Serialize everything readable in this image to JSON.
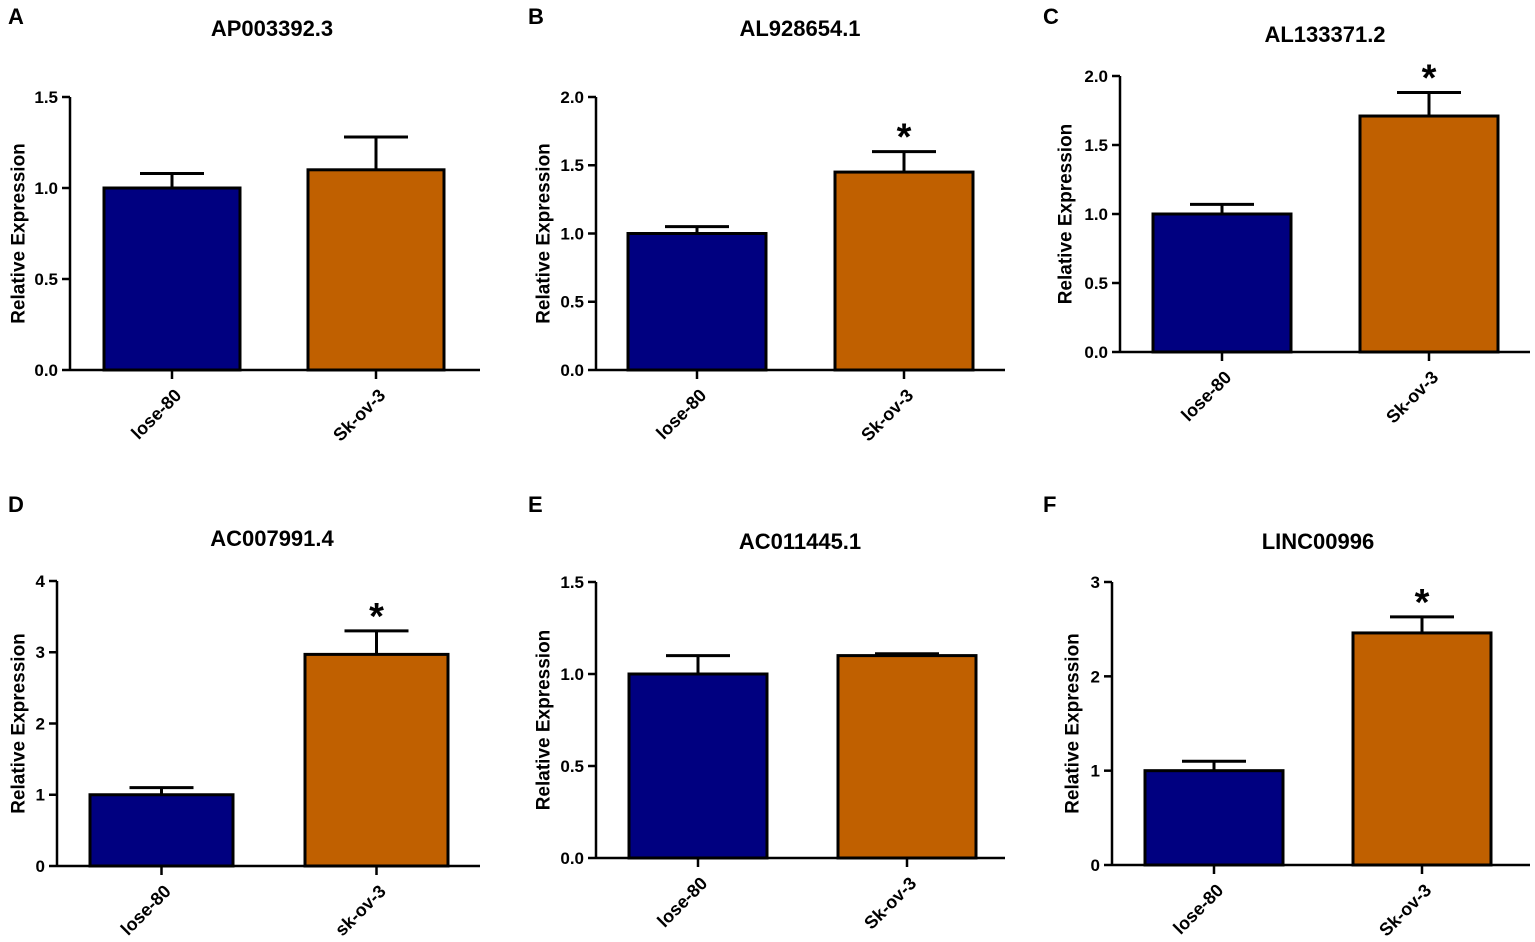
{
  "colors": {
    "control": "#000080",
    "cancer": "#C06000"
  },
  "chart_data": [
    {
      "type": "bar",
      "panel": "A",
      "title": "AP003392.3",
      "ylabel": "Relative Expression",
      "categories": [
        "lose-80",
        "Sk-ov-3"
      ],
      "values": [
        1.0,
        1.1
      ],
      "errors": [
        0.08,
        0.18
      ],
      "ylim": [
        0,
        1.5
      ],
      "yticks": [
        "0.0",
        "0.5",
        "1.0",
        "1.5"
      ],
      "significance": [
        "",
        ""
      ]
    },
    {
      "type": "bar",
      "panel": "B",
      "title": "AL928654.1",
      "ylabel": "Relative Expression",
      "categories": [
        "lose-80",
        "Sk-ov-3"
      ],
      "values": [
        1.0,
        1.45
      ],
      "errors": [
        0.05,
        0.15
      ],
      "ylim": [
        0,
        2.0
      ],
      "yticks": [
        "0.0",
        "0.5",
        "1.0",
        "1.5",
        "2.0"
      ],
      "significance": [
        "",
        "*"
      ]
    },
    {
      "type": "bar",
      "panel": "C",
      "title": "AL133371.2",
      "ylabel": "Relative Expression",
      "categories": [
        "lose-80",
        "Sk-ov-3"
      ],
      "values": [
        1.0,
        1.71
      ],
      "errors": [
        0.07,
        0.17
      ],
      "ylim": [
        0,
        2.0
      ],
      "yticks": [
        "0.0",
        "0.5",
        "1.0",
        "1.5",
        "2.0"
      ],
      "significance": [
        "",
        "*"
      ]
    },
    {
      "type": "bar",
      "panel": "D",
      "title": "AC007991.4",
      "ylabel": "Relative Expression",
      "categories": [
        "lose-80",
        "sk-ov-3"
      ],
      "values": [
        1.0,
        2.97
      ],
      "errors": [
        0.1,
        0.33
      ],
      "ylim": [
        0,
        4
      ],
      "yticks": [
        "0",
        "1",
        "2",
        "3",
        "4"
      ],
      "significance": [
        "",
        "*"
      ]
    },
    {
      "type": "bar",
      "panel": "E",
      "title": "AC011445.1",
      "ylabel": "Relative Expression",
      "categories": [
        "lose-80",
        "Sk-ov-3"
      ],
      "values": [
        1.0,
        1.1
      ],
      "errors": [
        0.1,
        0.01
      ],
      "ylim": [
        0,
        1.5
      ],
      "yticks": [
        "0.0",
        "0.5",
        "1.0",
        "1.5"
      ],
      "significance": [
        "",
        ""
      ]
    },
    {
      "type": "bar",
      "panel": "F",
      "title": "LINC00996",
      "ylabel": "Relative Expression",
      "categories": [
        "lose-80",
        "Sk-ov-3"
      ],
      "values": [
        1.0,
        2.46
      ],
      "errors": [
        0.1,
        0.17
      ],
      "ylim": [
        0,
        3
      ],
      "yticks": [
        "0",
        "1",
        "2",
        "3"
      ],
      "significance": [
        "",
        "*"
      ]
    }
  ]
}
